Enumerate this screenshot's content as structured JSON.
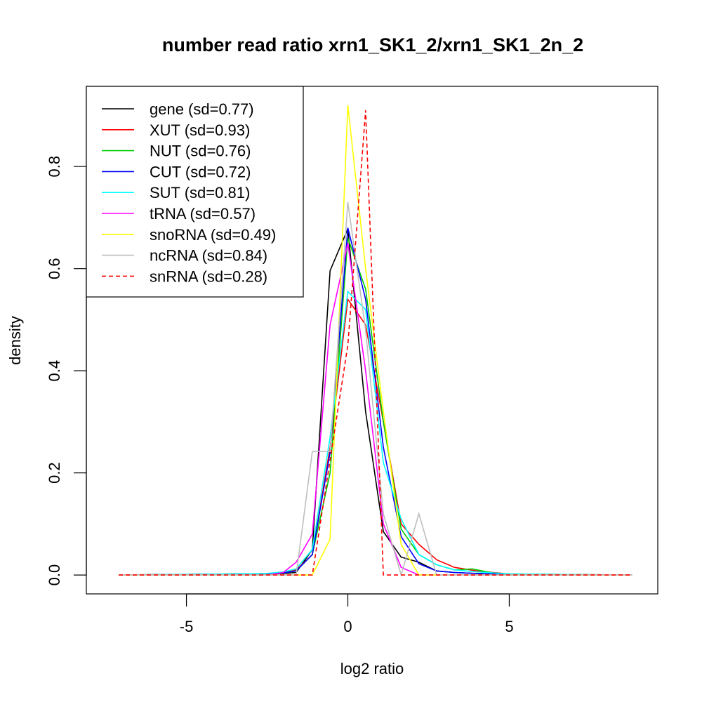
{
  "chart_data": {
    "type": "line",
    "title": "number read ratio xrn1_SK1_2/xrn1_SK1_2n_2",
    "xlabel": "log2 ratio",
    "ylabel": "density",
    "xlim": [
      -8.1,
      9.6
    ],
    "ylim": [
      -0.037,
      0.957
    ],
    "xticks": [
      -5,
      0,
      5
    ],
    "xtick_labels": [
      "-5",
      "0",
      "5"
    ],
    "yticks": [
      0.0,
      0.2,
      0.4,
      0.6,
      0.8
    ],
    "ytick_labels": [
      "0.0",
      "0.2",
      "0.4",
      "0.6",
      "0.8"
    ],
    "grid": false,
    "legend_position": "top-left",
    "series": [
      {
        "name": "gene (sd=0.77)",
        "color": "#000000",
        "dash": "solid",
        "x": [
          -7.1,
          -3.5,
          -2.5,
          -2.0,
          -1.6,
          -1.1,
          -0.55,
          0.0,
          0.55,
          1.1,
          1.65,
          2.2,
          2.75,
          3.3,
          4.0,
          5.0,
          8.8
        ],
        "y": [
          0.0,
          0.002,
          0.002,
          0.003,
          0.005,
          0.05,
          0.596,
          0.678,
          0.32,
          0.085,
          0.035,
          0.025,
          0.008,
          0.005,
          0.003,
          0.001,
          0.0
        ]
      },
      {
        "name": "XUT (sd=0.93)",
        "color": "#ff0000",
        "dash": "solid",
        "x": [
          -7.1,
          -3.3,
          -2.5,
          -2.0,
          -1.6,
          -1.1,
          -0.55,
          0.0,
          0.55,
          1.1,
          1.65,
          2.2,
          2.75,
          3.3,
          4.0,
          4.5,
          5.0,
          8.8
        ],
        "y": [
          0.0,
          0.002,
          0.003,
          0.005,
          0.01,
          0.04,
          0.25,
          0.54,
          0.49,
          0.3,
          0.1,
          0.06,
          0.03,
          0.015,
          0.008,
          0.005,
          0.002,
          0.0
        ]
      },
      {
        "name": "NUT (sd=0.76)",
        "color": "#00cd00",
        "dash": "solid",
        "x": [
          -7.1,
          -3.3,
          -2.5,
          -2.0,
          -1.6,
          -1.1,
          -0.55,
          0.0,
          0.55,
          1.1,
          1.65,
          2.2,
          2.75,
          3.3,
          3.85,
          4.5,
          5.0,
          8.8
        ],
        "y": [
          0.0,
          0.002,
          0.002,
          0.004,
          0.008,
          0.04,
          0.2,
          0.66,
          0.56,
          0.3,
          0.09,
          0.04,
          0.02,
          0.01,
          0.012,
          0.004,
          0.002,
          0.0
        ]
      },
      {
        "name": "CUT (sd=0.72)",
        "color": "#0000ff",
        "dash": "solid",
        "x": [
          -7.1,
          -3.3,
          -2.5,
          -2.0,
          -1.6,
          -1.1,
          -0.55,
          0.0,
          0.55,
          1.1,
          1.65,
          2.2,
          2.75,
          3.3,
          4.0,
          5.0,
          8.8
        ],
        "y": [
          0.0,
          0.002,
          0.002,
          0.004,
          0.008,
          0.04,
          0.24,
          0.68,
          0.54,
          0.25,
          0.075,
          0.022,
          0.008,
          0.005,
          0.003,
          0.001,
          0.0
        ]
      },
      {
        "name": "SUT (sd=0.81)",
        "color": "#00ffff",
        "dash": "solid",
        "x": [
          -7.1,
          -3.3,
          -2.5,
          -2.0,
          -1.6,
          -1.1,
          -0.55,
          0.0,
          0.55,
          1.1,
          1.65,
          2.2,
          2.75,
          3.3,
          4.0,
          5.0,
          8.8
        ],
        "y": [
          0.0,
          0.002,
          0.003,
          0.006,
          0.012,
          0.05,
          0.27,
          0.555,
          0.52,
          0.22,
          0.11,
          0.04,
          0.02,
          0.01,
          0.006,
          0.002,
          0.0
        ]
      },
      {
        "name": "tRNA (sd=0.57)",
        "color": "#ff00ff",
        "dash": "solid",
        "x": [
          -7.1,
          -2.5,
          -2.0,
          -1.6,
          -1.1,
          -0.55,
          0.0,
          0.55,
          1.1,
          1.65,
          2.2,
          8.8
        ],
        "y": [
          0.0,
          0.0,
          0.005,
          0.025,
          0.08,
          0.49,
          0.65,
          0.4,
          0.1,
          0.015,
          0.0,
          0.0
        ]
      },
      {
        "name": "snoRNA (sd=0.49)",
        "color": "#ffff00",
        "dash": "solid",
        "x": [
          -7.1,
          -1.1,
          -0.55,
          0.0,
          0.55,
          1.1,
          1.65,
          2.2,
          8.8
        ],
        "y": [
          0.0,
          0.0,
          0.07,
          0.92,
          0.6,
          0.32,
          0.06,
          0.0,
          0.0
        ]
      },
      {
        "name": "ncRNA (sd=0.84)",
        "color": "#bebebe",
        "dash": "solid",
        "x": [
          -7.1,
          -1.6,
          -1.1,
          -0.55,
          0.0,
          0.55,
          1.1,
          1.65,
          2.2,
          2.75,
          8.8
        ],
        "y": [
          0.0,
          0.0,
          0.242,
          0.242,
          0.73,
          0.48,
          0.12,
          0.0,
          0.12,
          0.0,
          0.0
        ]
      },
      {
        "name": "snRNA (sd=0.28)",
        "color": "#ff0000",
        "dash": "dashed",
        "x": [
          -7.1,
          -1.1,
          0.0,
          0.55,
          1.1,
          8.8
        ],
        "y": [
          0.0,
          0.0,
          0.45,
          0.91,
          0.0,
          0.0
        ]
      }
    ]
  }
}
